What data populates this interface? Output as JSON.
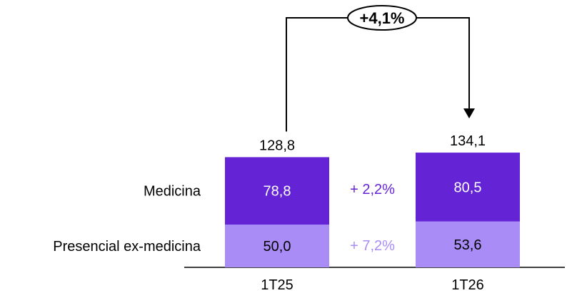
{
  "chart_data": {
    "type": "bar",
    "stacked": true,
    "categories": [
      "1T25",
      "1T26"
    ],
    "series": [
      {
        "name": "Presencial ex-medicina",
        "values": [
          50.0,
          53.6
        ],
        "labels": [
          "50,0",
          "53,6"
        ],
        "color": "#a98cf6",
        "label_color": "#000000"
      },
      {
        "name": "Medicina",
        "values": [
          78.8,
          80.5
        ],
        "labels": [
          "78,8",
          "80,5"
        ],
        "color": "#6424d5",
        "label_color": "#ffffff"
      }
    ],
    "totals": [
      128.8,
      134.1
    ],
    "total_labels": [
      "128,8",
      "134,1"
    ],
    "growth": [
      {
        "series": "Medicina",
        "label": "+ 2,2%",
        "color": "#6424d5"
      },
      {
        "series": "Presencial ex-medicina",
        "label": "+ 7,2%",
        "color": "#a98cf6"
      }
    ],
    "total_growth": "+4,1%",
    "legend_position": "left",
    "grid": false
  }
}
